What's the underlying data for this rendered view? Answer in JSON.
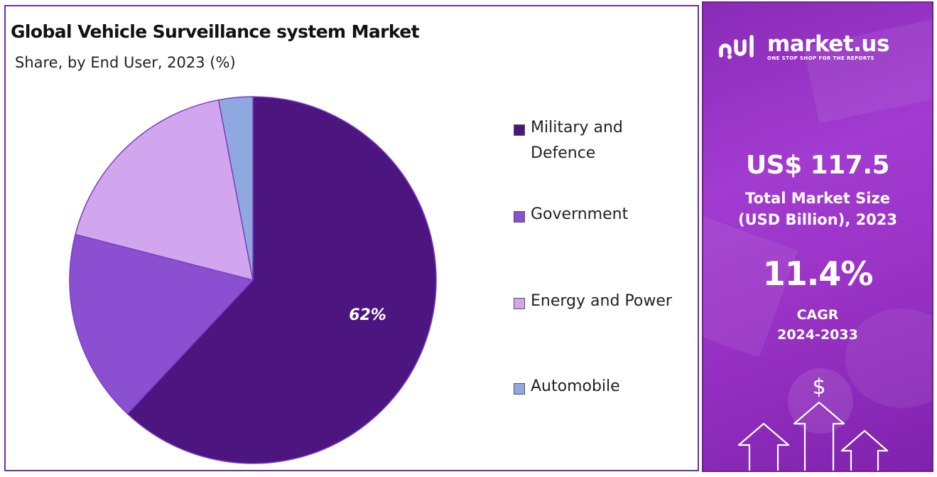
{
  "chart_data": {
    "type": "pie",
    "title": "Global Vehicle Surveillance system Market",
    "subtitle": "Share, by End User, 2023 (%)",
    "categories": [
      "Military and Defence",
      "Government",
      "Energy and Power",
      "Automobile"
    ],
    "values": [
      62,
      17,
      18,
      3
    ],
    "colors": [
      "#4c1580",
      "#8b4fd1",
      "#d2a6ef",
      "#8fa8e0"
    ],
    "data_labels": [
      "62%",
      "",
      "",
      ""
    ],
    "legend_position": "right"
  },
  "info_panel": {
    "brand_name": "market.us",
    "brand_tagline": "ONE STOP SHOP FOR THE REPORTS",
    "market_size_value": "US$ 117.5",
    "market_size_label_line1": "Total Market Size",
    "market_size_label_line2": "(USD Billion), 2023",
    "cagr_value": "11.4%",
    "cagr_label_line1": "CAGR",
    "cagr_label_line2": "2024-2033",
    "currency_symbol": "$",
    "icons": [
      "market-us-logo-icon",
      "dollar-icon",
      "up-arrow-icon"
    ]
  }
}
